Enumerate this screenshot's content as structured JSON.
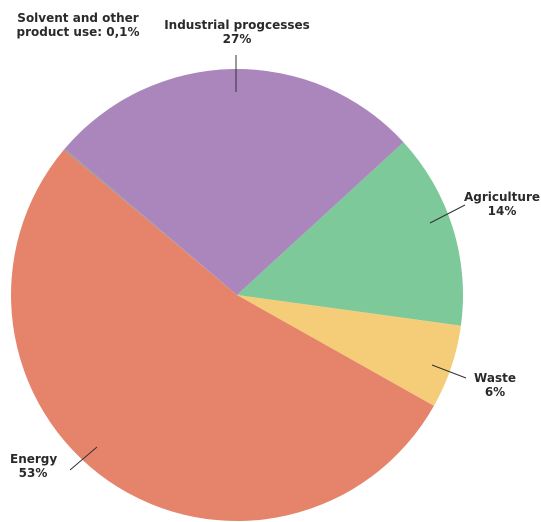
{
  "chart_data": {
    "type": "pie",
    "categories": [
      "Solvent and other product use:",
      "Industrial progcesses",
      "Agriculture",
      "Waste",
      "Energy"
    ],
    "values": [
      0.1,
      27,
      14,
      6,
      53
    ],
    "value_labels": [
      "0,1%",
      "27%",
      "14%",
      "6%",
      "53%"
    ],
    "colors": [
      "#9a9a9a",
      "#ab86bc",
      "#7dc99a",
      "#f5cd78",
      "#e5846b"
    ]
  }
}
